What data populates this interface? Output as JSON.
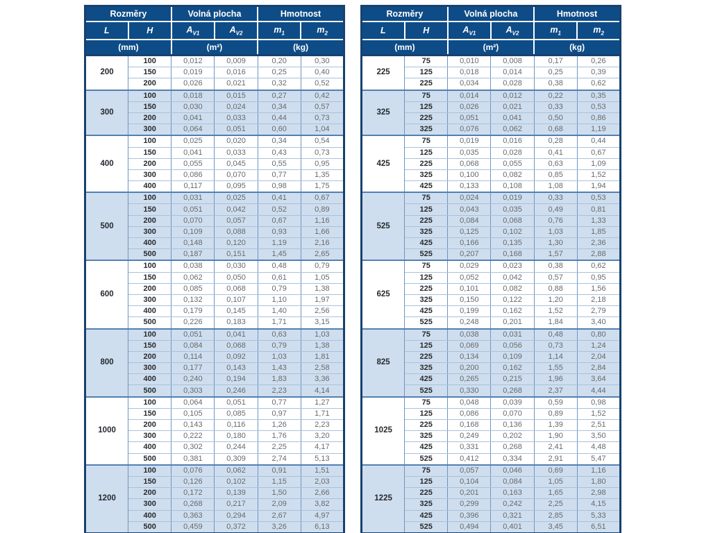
{
  "page": {
    "background": "#ffffff"
  },
  "colors": {
    "header_bg": "#0e4c87",
    "header_text": "#ffffff",
    "outer_border": "#17416f",
    "grid_border": "#6d94c0",
    "light_row_border": "#a8c1dd",
    "stripe_bg": "#cfdeee",
    "row_bg": "#ffffff",
    "label_text": "#26292e",
    "value_text": "#65696e"
  },
  "header": {
    "groups": [
      "Rozměry",
      "Volná plocha",
      "Hmotnost"
    ],
    "columns": [
      {
        "base": "L",
        "sub": ""
      },
      {
        "base": "H",
        "sub": ""
      },
      {
        "base": "A",
        "sub": "V1"
      },
      {
        "base": "A",
        "sub": "V2"
      },
      {
        "base": "m",
        "sub": "1"
      },
      {
        "base": "m",
        "sub": "2"
      }
    ],
    "units": [
      "(mm)",
      "(m²)",
      "(kg)"
    ]
  },
  "tables": [
    {
      "name": "left",
      "groups": [
        {
          "L": "200",
          "rows": [
            [
              "100",
              "0,012",
              "0,009",
              "0,20",
              "0,30"
            ],
            [
              "150",
              "0,019",
              "0,016",
              "0,25",
              "0,40"
            ],
            [
              "200",
              "0,026",
              "0,021",
              "0,32",
              "0,52"
            ]
          ]
        },
        {
          "L": "300",
          "rows": [
            [
              "100",
              "0,018",
              "0,015",
              "0,27",
              "0,42"
            ],
            [
              "150",
              "0,030",
              "0,024",
              "0,34",
              "0,57"
            ],
            [
              "200",
              "0,041",
              "0,033",
              "0,44",
              "0,73"
            ],
            [
              "300",
              "0,064",
              "0,051",
              "0,60",
              "1,04"
            ]
          ]
        },
        {
          "L": "400",
          "rows": [
            [
              "100",
              "0,025",
              "0,020",
              "0,34",
              "0,54"
            ],
            [
              "150",
              "0,041",
              "0,033",
              "0,43",
              "0,73"
            ],
            [
              "200",
              "0,055",
              "0,045",
              "0,55",
              "0,95"
            ],
            [
              "300",
              "0,086",
              "0,070",
              "0,77",
              "1,35"
            ],
            [
              "400",
              "0,117",
              "0,095",
              "0,98",
              "1,75"
            ]
          ]
        },
        {
          "L": "500",
          "rows": [
            [
              "100",
              "0,031",
              "0,025",
              "0,41",
              "0,67"
            ],
            [
              "150",
              "0,051",
              "0,042",
              "0,52",
              "0,89"
            ],
            [
              "200",
              "0,070",
              "0,057",
              "0,67",
              "1,16"
            ],
            [
              "300",
              "0,109",
              "0,088",
              "0,93",
              "1,66"
            ],
            [
              "400",
              "0,148",
              "0,120",
              "1,19",
              "2,16"
            ],
            [
              "500",
              "0,187",
              "0,151",
              "1,45",
              "2,65"
            ]
          ]
        },
        {
          "L": "600",
          "rows": [
            [
              "100",
              "0,038",
              "0,030",
              "0,48",
              "0,79"
            ],
            [
              "150",
              "0,062",
              "0,050",
              "0,61",
              "1,05"
            ],
            [
              "200",
              "0,085",
              "0,068",
              "0,79",
              "1,38"
            ],
            [
              "300",
              "0,132",
              "0,107",
              "1,10",
              "1,97"
            ],
            [
              "400",
              "0,179",
              "0,145",
              "1,40",
              "2,56"
            ],
            [
              "500",
              "0,226",
              "0,183",
              "1,71",
              "3,15"
            ]
          ]
        },
        {
          "L": "800",
          "rows": [
            [
              "100",
              "0,051",
              "0,041",
              "0,63",
              "1,03"
            ],
            [
              "150",
              "0,084",
              "0,068",
              "0,79",
              "1,38"
            ],
            [
              "200",
              "0,114",
              "0,092",
              "1,03",
              "1,81"
            ],
            [
              "300",
              "0,177",
              "0,143",
              "1,43",
              "2,58"
            ],
            [
              "400",
              "0,240",
              "0,194",
              "1,83",
              "3,36"
            ],
            [
              "500",
              "0,303",
              "0,246",
              "2,23",
              "4,14"
            ]
          ]
        },
        {
          "L": "1000",
          "rows": [
            [
              "100",
              "0,064",
              "0,051",
              "0,77",
              "1,27"
            ],
            [
              "150",
              "0,105",
              "0,085",
              "0,97",
              "1,71"
            ],
            [
              "200",
              "0,143",
              "0,116",
              "1,26",
              "2,23"
            ],
            [
              "300",
              "0,222",
              "0,180",
              "1,76",
              "3,20"
            ],
            [
              "400",
              "0,302",
              "0,244",
              "2,25",
              "4,17"
            ],
            [
              "500",
              "0,381",
              "0,309",
              "2,74",
              "5,13"
            ]
          ]
        },
        {
          "L": "1200",
          "rows": [
            [
              "100",
              "0,076",
              "0,062",
              "0,91",
              "1,51"
            ],
            [
              "150",
              "0,126",
              "0,102",
              "1,15",
              "2,03"
            ],
            [
              "200",
              "0,172",
              "0,139",
              "1,50",
              "2,66"
            ],
            [
              "300",
              "0,268",
              "0,217",
              "2,09",
              "3,82"
            ],
            [
              "400",
              "0,363",
              "0,294",
              "2,67",
              "4,97"
            ],
            [
              "500",
              "0,459",
              "0,372",
              "3,26",
              "6,13"
            ]
          ]
        }
      ]
    },
    {
      "name": "right",
      "groups": [
        {
          "L": "225",
          "rows": [
            [
              "75",
              "0,010",
              "0,008",
              "0,17",
              "0,26"
            ],
            [
              "125",
              "0,018",
              "0,014",
              "0,25",
              "0,39"
            ],
            [
              "225",
              "0,034",
              "0,028",
              "0,38",
              "0,62"
            ]
          ]
        },
        {
          "L": "325",
          "rows": [
            [
              "75",
              "0,014",
              "0,012",
              "0,22",
              "0,35"
            ],
            [
              "125",
              "0,026",
              "0,021",
              "0,33",
              "0,53"
            ],
            [
              "225",
              "0,051",
              "0,041",
              "0,50",
              "0,86"
            ],
            [
              "325",
              "0,076",
              "0,062",
              "0,68",
              "1,19"
            ]
          ]
        },
        {
          "L": "425",
          "rows": [
            [
              "75",
              "0,019",
              "0,016",
              "0,28",
              "0,44"
            ],
            [
              "125",
              "0,035",
              "0,028",
              "0,41",
              "0,67"
            ],
            [
              "225",
              "0,068",
              "0,055",
              "0,63",
              "1,09"
            ],
            [
              "325",
              "0,100",
              "0,082",
              "0,85",
              "1,52"
            ],
            [
              "425",
              "0,133",
              "0,108",
              "1,08",
              "1,94"
            ]
          ]
        },
        {
          "L": "525",
          "rows": [
            [
              "75",
              "0,024",
              "0,019",
              "0,33",
              "0,53"
            ],
            [
              "125",
              "0,043",
              "0,035",
              "0,49",
              "0,81"
            ],
            [
              "225",
              "0,084",
              "0,068",
              "0,76",
              "1,33"
            ],
            [
              "325",
              "0,125",
              "0,102",
              "1,03",
              "1,85"
            ],
            [
              "425",
              "0,166",
              "0,135",
              "1,30",
              "2,36"
            ],
            [
              "525",
              "0,207",
              "0,168",
              "1,57",
              "2,88"
            ]
          ]
        },
        {
          "L": "625",
          "rows": [
            [
              "75",
              "0,029",
              "0,023",
              "0,38",
              "0,62"
            ],
            [
              "125",
              "0,052",
              "0,042",
              "0,57",
              "0,95"
            ],
            [
              "225",
              "0,101",
              "0,082",
              "0,88",
              "1,56"
            ],
            [
              "325",
              "0,150",
              "0,122",
              "1,20",
              "2,18"
            ],
            [
              "425",
              "0,199",
              "0,162",
              "1,52",
              "2,79"
            ],
            [
              "525",
              "0,248",
              "0,201",
              "1,84",
              "3,40"
            ]
          ]
        },
        {
          "L": "825",
          "rows": [
            [
              "75",
              "0,038",
              "0,031",
              "0,48",
              "0,80"
            ],
            [
              "125",
              "0,069",
              "0,056",
              "0,73",
              "1,24"
            ],
            [
              "225",
              "0,134",
              "0,109",
              "1,14",
              "2,04"
            ],
            [
              "325",
              "0,200",
              "0,162",
              "1,55",
              "2,84"
            ],
            [
              "425",
              "0,265",
              "0,215",
              "1,96",
              "3,64"
            ],
            [
              "525",
              "0,330",
              "0,268",
              "2,37",
              "4,44"
            ]
          ]
        },
        {
          "L": "1025",
          "rows": [
            [
              "75",
              "0,048",
              "0,039",
              "0,59",
              "0,98"
            ],
            [
              "125",
              "0,086",
              "0,070",
              "0,89",
              "1,52"
            ],
            [
              "225",
              "0,168",
              "0,136",
              "1,39",
              "2,51"
            ],
            [
              "325",
              "0,249",
              "0,202",
              "1,90",
              "3,50"
            ],
            [
              "425",
              "0,331",
              "0,268",
              "2,41",
              "4,48"
            ],
            [
              "525",
              "0,412",
              "0,334",
              "2,91",
              "5,47"
            ]
          ]
        },
        {
          "L": "1225",
          "rows": [
            [
              "75",
              "0,057",
              "0,046",
              "0,69",
              "1,16"
            ],
            [
              "125",
              "0,104",
              "0,084",
              "1,05",
              "1,80"
            ],
            [
              "225",
              "0,201",
              "0,163",
              "1,65",
              "2,98"
            ],
            [
              "325",
              "0,299",
              "0,242",
              "2,25",
              "4,15"
            ],
            [
              "425",
              "0,396",
              "0,321",
              "2,85",
              "5,33"
            ],
            [
              "525",
              "0,494",
              "0,401",
              "3,45",
              "6,51"
            ]
          ]
        }
      ]
    }
  ]
}
